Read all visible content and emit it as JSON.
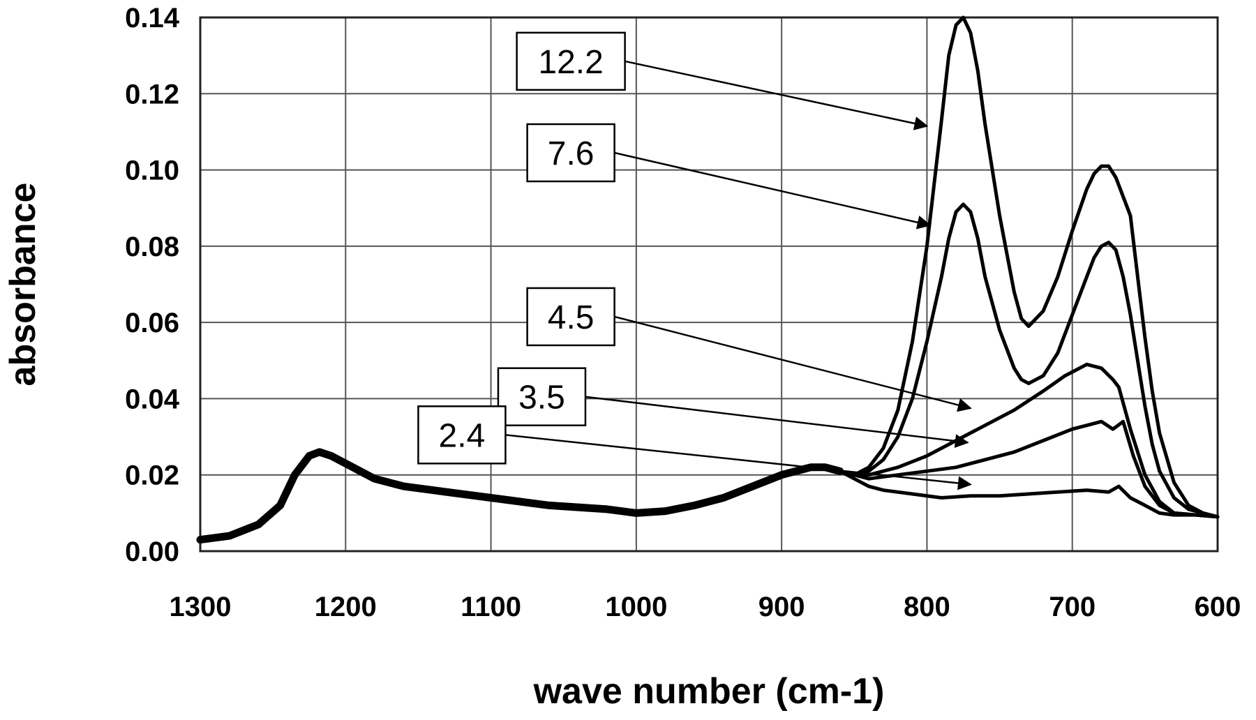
{
  "chart_data": {
    "type": "line",
    "title": "",
    "xlabel": "wave number (cm-1)",
    "ylabel": "absorbance",
    "xlim": [
      1300,
      600
    ],
    "ylim": [
      0,
      0.14
    ],
    "x_reversed": true,
    "grid": true,
    "legend": "none",
    "x_ticks": [
      "1300",
      "1200",
      "1100",
      "1000",
      "900",
      "800",
      "700",
      "600"
    ],
    "y_ticks": [
      "0.00",
      "0.02",
      "0.04",
      "0.06",
      "0.08",
      "0.10",
      "0.12",
      "0.14"
    ],
    "series": [
      {
        "name": "2.4",
        "x": [
          1300,
          1280,
          1260,
          1245,
          1235,
          1225,
          1218,
          1210,
          1195,
          1180,
          1160,
          1140,
          1100,
          1060,
          1020,
          1000,
          980,
          960,
          940,
          920,
          900,
          880,
          870,
          860,
          850,
          840,
          830,
          810,
          790,
          770,
          750,
          730,
          710,
          690,
          675,
          668,
          660,
          650,
          640,
          630,
          615,
          600
        ],
        "y": [
          0.003,
          0.004,
          0.007,
          0.012,
          0.02,
          0.025,
          0.026,
          0.025,
          0.022,
          0.019,
          0.017,
          0.016,
          0.014,
          0.012,
          0.011,
          0.01,
          0.0105,
          0.012,
          0.014,
          0.017,
          0.02,
          0.022,
          0.022,
          0.021,
          0.019,
          0.017,
          0.016,
          0.015,
          0.014,
          0.0145,
          0.0145,
          0.015,
          0.0155,
          0.016,
          0.0155,
          0.017,
          0.014,
          0.012,
          0.01,
          0.0095,
          0.0095,
          0.009
        ]
      },
      {
        "name": "3.5",
        "x": [
          1300,
          1280,
          1260,
          1245,
          1235,
          1225,
          1218,
          1210,
          1195,
          1180,
          1160,
          1140,
          1100,
          1060,
          1020,
          1000,
          980,
          960,
          940,
          920,
          900,
          880,
          870,
          860,
          850,
          840,
          820,
          800,
          780,
          760,
          740,
          720,
          700,
          690,
          680,
          672,
          665,
          658,
          650,
          640,
          630,
          615,
          600
        ],
        "y": [
          0.003,
          0.004,
          0.007,
          0.012,
          0.02,
          0.025,
          0.026,
          0.025,
          0.022,
          0.019,
          0.017,
          0.016,
          0.014,
          0.012,
          0.011,
          0.01,
          0.0105,
          0.012,
          0.014,
          0.017,
          0.02,
          0.022,
          0.022,
          0.021,
          0.02,
          0.019,
          0.02,
          0.021,
          0.022,
          0.024,
          0.026,
          0.029,
          0.032,
          0.033,
          0.034,
          0.032,
          0.034,
          0.025,
          0.017,
          0.012,
          0.01,
          0.0095,
          0.009
        ]
      },
      {
        "name": "4.5",
        "x": [
          1300,
          1280,
          1260,
          1245,
          1235,
          1225,
          1218,
          1210,
          1195,
          1180,
          1160,
          1140,
          1100,
          1060,
          1020,
          1000,
          980,
          960,
          940,
          920,
          900,
          880,
          870,
          860,
          850,
          840,
          820,
          800,
          780,
          760,
          740,
          720,
          705,
          690,
          680,
          672,
          668,
          660,
          650,
          640,
          630,
          615,
          600
        ],
        "y": [
          0.003,
          0.004,
          0.007,
          0.012,
          0.02,
          0.025,
          0.026,
          0.025,
          0.022,
          0.019,
          0.017,
          0.016,
          0.014,
          0.012,
          0.011,
          0.01,
          0.0105,
          0.012,
          0.014,
          0.017,
          0.02,
          0.022,
          0.022,
          0.021,
          0.02,
          0.02,
          0.022,
          0.025,
          0.029,
          0.033,
          0.037,
          0.042,
          0.046,
          0.049,
          0.048,
          0.045,
          0.043,
          0.032,
          0.02,
          0.013,
          0.01,
          0.0095,
          0.009
        ]
      },
      {
        "name": "7.6",
        "x": [
          1300,
          1280,
          1260,
          1245,
          1235,
          1225,
          1218,
          1210,
          1195,
          1180,
          1160,
          1140,
          1100,
          1060,
          1020,
          1000,
          980,
          960,
          940,
          920,
          900,
          880,
          870,
          860,
          850,
          840,
          830,
          820,
          810,
          800,
          790,
          785,
          780,
          775,
          770,
          765,
          760,
          750,
          740,
          735,
          730,
          720,
          710,
          700,
          690,
          685,
          680,
          675,
          670,
          665,
          660,
          655,
          650,
          645,
          640,
          630,
          620,
          610,
          600
        ],
        "y": [
          0.003,
          0.004,
          0.007,
          0.012,
          0.02,
          0.025,
          0.026,
          0.025,
          0.022,
          0.019,
          0.017,
          0.016,
          0.014,
          0.012,
          0.011,
          0.01,
          0.0105,
          0.012,
          0.014,
          0.017,
          0.02,
          0.022,
          0.022,
          0.021,
          0.02,
          0.021,
          0.024,
          0.03,
          0.04,
          0.055,
          0.072,
          0.082,
          0.089,
          0.091,
          0.089,
          0.082,
          0.072,
          0.058,
          0.048,
          0.045,
          0.044,
          0.046,
          0.052,
          0.062,
          0.072,
          0.077,
          0.08,
          0.081,
          0.079,
          0.072,
          0.062,
          0.05,
          0.038,
          0.028,
          0.021,
          0.014,
          0.011,
          0.01,
          0.009
        ]
      },
      {
        "name": "12.2",
        "x": [
          1300,
          1280,
          1260,
          1245,
          1235,
          1225,
          1218,
          1210,
          1195,
          1180,
          1160,
          1140,
          1100,
          1060,
          1020,
          1000,
          980,
          960,
          940,
          920,
          900,
          880,
          870,
          860,
          850,
          840,
          830,
          820,
          810,
          800,
          790,
          785,
          780,
          775,
          770,
          765,
          760,
          750,
          740,
          735,
          730,
          720,
          710,
          700,
          690,
          685,
          680,
          675,
          670,
          665,
          660,
          655,
          650,
          645,
          640,
          630,
          620,
          610,
          600
        ],
        "y": [
          0.003,
          0.004,
          0.007,
          0.012,
          0.02,
          0.025,
          0.026,
          0.025,
          0.022,
          0.019,
          0.017,
          0.016,
          0.014,
          0.012,
          0.011,
          0.01,
          0.0105,
          0.012,
          0.014,
          0.017,
          0.02,
          0.022,
          0.022,
          0.021,
          0.02,
          0.022,
          0.027,
          0.037,
          0.055,
          0.08,
          0.113,
          0.13,
          0.138,
          0.14,
          0.136,
          0.126,
          0.112,
          0.088,
          0.068,
          0.061,
          0.059,
          0.063,
          0.072,
          0.084,
          0.095,
          0.099,
          0.101,
          0.101,
          0.098,
          0.093,
          0.088,
          0.072,
          0.056,
          0.042,
          0.031,
          0.018,
          0.012,
          0.01,
          0.009
        ]
      }
    ],
    "annotations": [
      {
        "text": "12.2",
        "box_x": 1045,
        "box_y": 0.1285,
        "target_x": 800,
        "target_y": 0.1115
      },
      {
        "text": "7.6",
        "box_x": 1045,
        "box_y": 0.1045,
        "target_x": 798,
        "target_y": 0.0855
      },
      {
        "text": "4.5",
        "box_x": 1045,
        "box_y": 0.0615,
        "target_x": 770,
        "target_y": 0.0375
      },
      {
        "text": "3.5",
        "box_x": 1065,
        "box_y": 0.0405,
        "target_x": 772,
        "target_y": 0.0285
      },
      {
        "text": "2.4",
        "box_x": 1120,
        "box_y": 0.0305,
        "target_x": 770,
        "target_y": 0.0175
      }
    ]
  }
}
